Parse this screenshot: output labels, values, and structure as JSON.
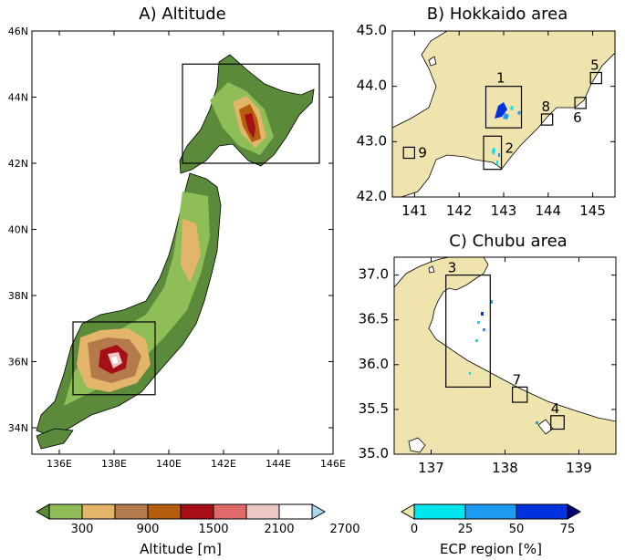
{
  "colors": {
    "sea": "#ffffff",
    "hokkaido_land": "#efe3ae",
    "low_land": "#5a8a3a"
  },
  "chart_data": [
    {
      "panel": "A",
      "type": "heatmap",
      "title": "A) Altitude",
      "xlim": [
        135,
        146
      ],
      "ylim": [
        33.2,
        46
      ],
      "x_ticks": [
        {
          "v": 136,
          "t": "136E"
        },
        {
          "v": 138,
          "t": "138E"
        },
        {
          "v": 140,
          "t": "140E"
        },
        {
          "v": 142,
          "t": "142E"
        },
        {
          "v": 144,
          "t": "144E"
        },
        {
          "v": 146,
          "t": "146E"
        }
      ],
      "y_ticks": [
        {
          "v": 34,
          "t": "34N"
        },
        {
          "v": 36,
          "t": "36N"
        },
        {
          "v": 38,
          "t": "38N"
        },
        {
          "v": 40,
          "t": "40N"
        },
        {
          "v": 42,
          "t": "42N"
        },
        {
          "v": 44,
          "t": "44N"
        },
        {
          "v": 46,
          "t": "46N"
        }
      ],
      "boxes": [
        {
          "x0": 140.5,
          "x1": 145.5,
          "y0": 42.0,
          "y1": 45.0
        },
        {
          "x0": 136.5,
          "x1": 139.5,
          "y0": 35.0,
          "y1": 37.2
        }
      ]
    },
    {
      "panel": "B",
      "type": "heatmap",
      "title": "B) Hokkaido area",
      "xlim": [
        140.5,
        145.5
      ],
      "ylim": [
        42.0,
        45.0
      ],
      "x_ticks": [
        {
          "v": 141,
          "t": "141"
        },
        {
          "v": 142,
          "t": "142"
        },
        {
          "v": 143,
          "t": "143"
        },
        {
          "v": 144,
          "t": "144"
        },
        {
          "v": 145,
          "t": "145"
        }
      ],
      "y_ticks": [
        {
          "v": 42,
          "t": "42.0"
        },
        {
          "v": 43,
          "t": "43.0"
        },
        {
          "v": 44,
          "t": "44.0"
        },
        {
          "v": 45,
          "t": "45.0"
        }
      ],
      "regions": [
        {
          "id": "1",
          "x0": 142.6,
          "x1": 143.4,
          "y0": 43.25,
          "y1": 44.0
        },
        {
          "id": "2",
          "x0": 142.55,
          "x1": 142.95,
          "y0": 42.5,
          "y1": 43.1
        },
        {
          "id": "5",
          "x0": 144.95,
          "x1": 145.2,
          "y0": 44.05,
          "y1": 44.25
        },
        {
          "id": "6",
          "x0": 144.6,
          "x1": 144.85,
          "y0": 43.6,
          "y1": 43.8
        },
        {
          "id": "8",
          "x0": 143.85,
          "x1": 144.1,
          "y0": 43.3,
          "y1": 43.5
        },
        {
          "id": "9",
          "x0": 140.75,
          "x1": 141.0,
          "y0": 42.7,
          "y1": 42.9
        }
      ]
    },
    {
      "panel": "C",
      "type": "heatmap",
      "title": "C) Chubu area",
      "xlim": [
        136.5,
        139.5
      ],
      "ylim": [
        35.0,
        37.2
      ],
      "x_ticks": [
        {
          "v": 137,
          "t": "137"
        },
        {
          "v": 138,
          "t": "138"
        },
        {
          "v": 139,
          "t": "139"
        }
      ],
      "y_ticks": [
        {
          "v": 35,
          "t": "35.0"
        },
        {
          "v": 35.5,
          "t": "35.5"
        },
        {
          "v": 36,
          "t": "36.0"
        },
        {
          "v": 36.5,
          "t": "36.5"
        },
        {
          "v": 37,
          "t": "37.0"
        }
      ],
      "regions": [
        {
          "id": "3",
          "x0": 137.2,
          "x1": 137.8,
          "y0": 35.75,
          "y1": 37.0
        },
        {
          "id": "7",
          "x0": 138.1,
          "x1": 138.3,
          "y0": 35.58,
          "y1": 35.75
        },
        {
          "id": "4",
          "x0": 138.62,
          "x1": 138.8,
          "y0": 35.28,
          "y1": 35.43
        }
      ]
    }
  ],
  "altitude_colorbar": {
    "label": "Altitude [m]",
    "tick_labels": [
      "300",
      "900",
      "1500",
      "2100",
      "2700"
    ],
    "colors": [
      "#5a8a3a",
      "#8fbd57",
      "#e2b56a",
      "#b57a4b",
      "#b45d0e",
      "#a50f15",
      "#e06a6a",
      "#ecc8c4",
      "#ffffff",
      "#a8d6ea"
    ]
  },
  "ecp_colorbar": {
    "label": "ECP region [%]",
    "tick_labels": [
      "0",
      "25",
      "50",
      "75"
    ],
    "colors": [
      "#efe3ae",
      "#00e5ee",
      "#1e9bf0",
      "#0033dd",
      "#000077"
    ]
  }
}
